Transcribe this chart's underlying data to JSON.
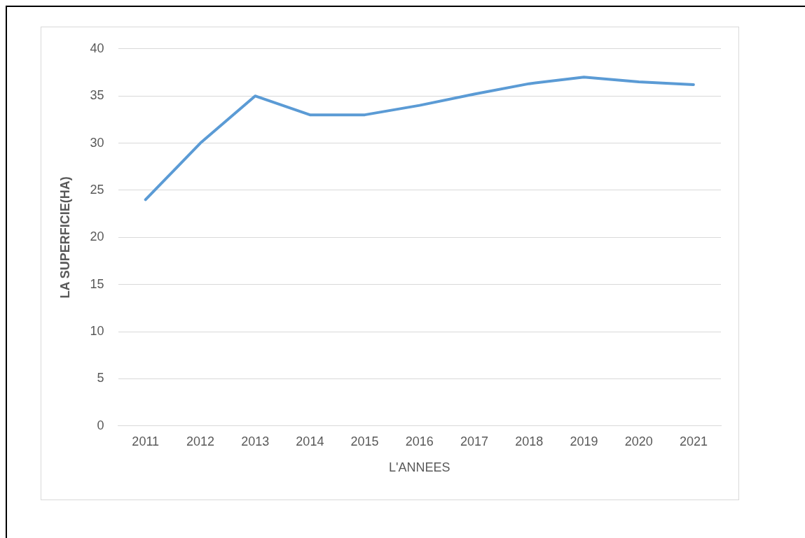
{
  "chart_data": {
    "type": "line",
    "xlabel": "L'ANNEES",
    "ylabel": "LA SUPERFICIE(HA)",
    "categories": [
      "2011",
      "2012",
      "2013",
      "2014",
      "2015",
      "2016",
      "2017",
      "2018",
      "2019",
      "2020",
      "2021"
    ],
    "series": [
      {
        "color": "#5b9bd5",
        "values": [
          24,
          30,
          35,
          33,
          33,
          34,
          35.2,
          36.3,
          37,
          36.5,
          36.2
        ]
      }
    ],
    "ylim": [
      0,
      40
    ],
    "yticks": [
      0,
      5,
      10,
      15,
      20,
      25,
      30,
      35,
      40
    ],
    "grid": "y",
    "legend": false,
    "marker": "none",
    "line_style": "solid"
  }
}
